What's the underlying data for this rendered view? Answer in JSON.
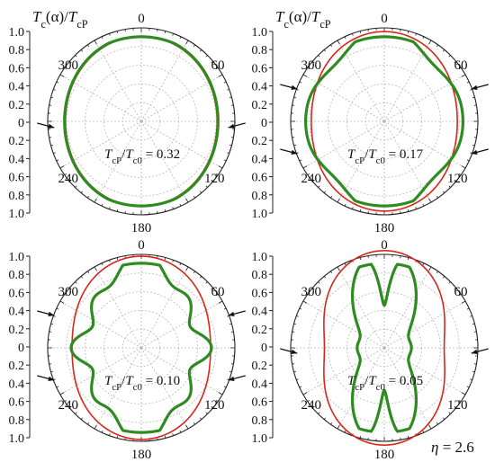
{
  "chart_data": [
    {
      "type": "polar-line",
      "title": "Tc(α)/TcP",
      "title_parts": {
        "main": "T",
        "sub1": "c",
        "mid": "(α)/",
        "main2": "T",
        "sub2": "cP"
      },
      "radial_ticks": [
        "1.0",
        "0.8",
        "0.6",
        "0.4",
        "0.2",
        "0",
        "0.2",
        "0.4",
        "0.6",
        "0.8",
        "1.0"
      ],
      "angle_labels": [
        "0",
        "60",
        "120",
        "180",
        "240",
        "300"
      ],
      "rlim": [
        0,
        1.0
      ],
      "annotation": {
        "main": "T",
        "sub1": "cP",
        "mid": "/",
        "main2": "T",
        "sub2": "c0",
        "tail": " = 0.32"
      },
      "series": [
        {
          "color": "#d8261b",
          "harmonics": {
            "a0": 0.86,
            "a2": 0.05,
            "a4": 0.0,
            "a6": 0.0,
            "a8": 0.0
          }
        },
        {
          "color": "#2e8b1f",
          "harmonics": {
            "a0": 0.87,
            "a2": 0.05,
            "a4": 0.0,
            "a6": 0.0,
            "a8": 0.0,
            "clip": 0.905
          }
        }
      ]
    },
    {
      "type": "polar-line",
      "title": "Tc(α)/TcP",
      "title_parts": {
        "main": "T",
        "sub1": "c",
        "mid": "(α)/",
        "main2": "T",
        "sub2": "cP"
      },
      "radial_ticks": [
        "1.0",
        "0.8",
        "0.6",
        "0.4",
        "0.2",
        "0",
        "0.2",
        "0.4",
        "0.6",
        "0.8",
        "1.0"
      ],
      "angle_labels": [
        "0",
        "60",
        "120",
        "180",
        "240",
        "300"
      ],
      "rlim": [
        0,
        1.0
      ],
      "annotation": {
        "main": "T",
        "sub1": "cP",
        "mid": "/",
        "main2": "T",
        "sub2": "c0",
        "tail": " = 0.17"
      },
      "series": [
        {
          "color": "#d8261b",
          "harmonics": {
            "a0": 0.87,
            "a2": 0.09,
            "a4": 0.0,
            "a6": 0.0,
            "a8": 0.0
          }
        },
        {
          "color": "#2e8b1f",
          "harmonics": {
            "a0": 0.86,
            "a2": 0.06,
            "a4": 0.06,
            "a6": 0.02,
            "a8": 0.0,
            "clip": 0.905
          }
        }
      ]
    },
    {
      "type": "polar-line",
      "title": "",
      "radial_ticks": [
        "1.0",
        "0.8",
        "0.6",
        "0.4",
        "0.2",
        "0",
        "0.2",
        "0.4",
        "0.6",
        "0.8",
        "1.0"
      ],
      "angle_labels": [
        "0",
        "60",
        "120",
        "180",
        "240",
        "300"
      ],
      "rlim": [
        0,
        1.0
      ],
      "annotation": {
        "main": "T",
        "sub1": "cP",
        "mid": "/",
        "main2": "T",
        "sub2": "c0",
        "tail": " = 0.10"
      },
      "series": [
        {
          "color": "#d8261b",
          "harmonics": {
            "a0": 0.86,
            "a2": 0.12,
            "a4": 0.0,
            "a6": 0.0,
            "a8": 0.0
          }
        },
        {
          "color": "#2e8b1f",
          "harmonics": {
            "a0": 0.74,
            "a2": 0.14,
            "a4": 0.08,
            "a6": 0.0,
            "a8": 0.07,
            "clip": 0.905
          }
        }
      ]
    },
    {
      "type": "polar-line",
      "title": "",
      "radial_ticks": [
        "1.0",
        "0.8",
        "0.6",
        "0.4",
        "0.2",
        "0",
        "0.2",
        "0.4",
        "0.6",
        "0.8",
        "1.0"
      ],
      "angle_labels": [
        "0",
        "60",
        "120",
        "180",
        "240",
        "300"
      ],
      "rlim": [
        0,
        1.0
      ],
      "annotation": {
        "main": "T",
        "sub1": "cP",
        "mid": "/",
        "main2": "T",
        "sub2": "c0",
        "tail": " = 0.05"
      },
      "series": [
        {
          "color": "#d8261b",
          "harmonics": {
            "a0": 0.84,
            "a2": 0.2,
            "a4": 0.0,
            "a6": 0.0,
            "a8": 0.0
          }
        },
        {
          "color": "#2e8b1f",
          "harmonics": {
            "a0": 0.55,
            "a2": 0.38,
            "a4": 0.12,
            "a6": 0.0,
            "a8": 0.0,
            "clip": 0.905,
            "notch": 0.35
          }
        }
      ]
    }
  ],
  "figure_annotation": {
    "symbol": "η",
    "text": " = 2.6"
  }
}
